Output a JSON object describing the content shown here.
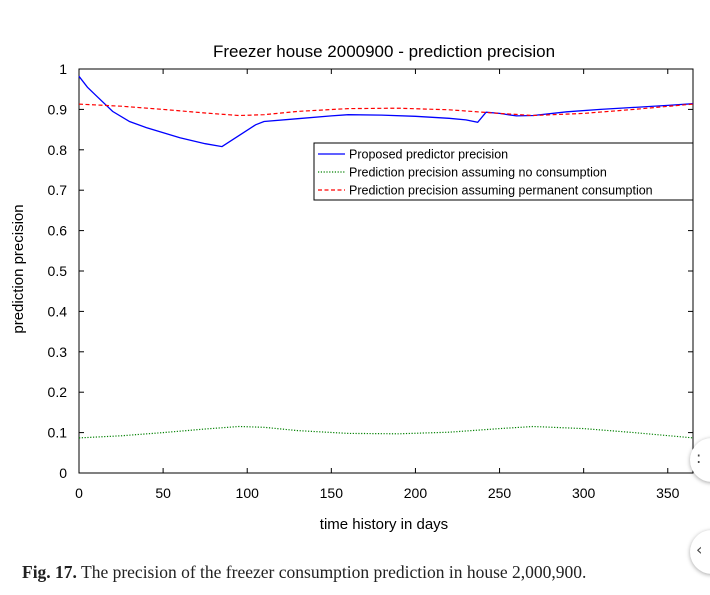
{
  "chart_data": {
    "type": "line",
    "title": "Freezer  house 2000900 - prediction precision",
    "xlabel": "time history in days",
    "ylabel": "prediction precision",
    "xlim": [
      0,
      365
    ],
    "ylim": [
      0,
      1
    ],
    "xticks": [
      0,
      50,
      100,
      150,
      200,
      250,
      300,
      350
    ],
    "yticks": [
      0,
      0.1,
      0.2,
      0.3,
      0.4,
      0.5,
      0.6,
      0.7,
      0.8,
      0.9,
      1
    ],
    "ytick_labels": [
      "0",
      "0.1",
      "0.2",
      "0.3",
      "0.4",
      "0.5",
      "0.6",
      "0.7",
      "0.8",
      "0.9",
      "1"
    ],
    "grid": false,
    "legend_position": "top-right",
    "series": [
      {
        "name": "Proposed predictor precision",
        "color": "#0000ff",
        "dash": "solid",
        "x": [
          0,
          5,
          10,
          20,
          30,
          40,
          60,
          75,
          85,
          95,
          105,
          110,
          130,
          150,
          160,
          180,
          200,
          220,
          230,
          237,
          242,
          250,
          260,
          270,
          290,
          310,
          330,
          350,
          365
        ],
        "y": [
          0.982,
          0.955,
          0.935,
          0.895,
          0.87,
          0.855,
          0.83,
          0.815,
          0.808,
          0.835,
          0.862,
          0.87,
          0.877,
          0.884,
          0.887,
          0.886,
          0.883,
          0.878,
          0.874,
          0.868,
          0.893,
          0.89,
          0.884,
          0.885,
          0.894,
          0.9,
          0.905,
          0.91,
          0.914
        ]
      },
      {
        "name": "Prediction precision assuming no consumption",
        "color": "#008000",
        "dash": "dotted",
        "x": [
          0,
          25,
          50,
          75,
          95,
          110,
          130,
          160,
          190,
          220,
          250,
          270,
          300,
          330,
          365
        ],
        "y": [
          0.087,
          0.092,
          0.1,
          0.109,
          0.115,
          0.113,
          0.105,
          0.098,
          0.097,
          0.101,
          0.11,
          0.115,
          0.11,
          0.1,
          0.087
        ]
      },
      {
        "name": "Prediction precision assuming permanent consumption",
        "color": "#ff0000",
        "dash": "dashed",
        "x": [
          0,
          25,
          50,
          75,
          95,
          110,
          130,
          160,
          190,
          220,
          250,
          270,
          300,
          330,
          365
        ],
        "y": [
          0.913,
          0.908,
          0.9,
          0.891,
          0.885,
          0.887,
          0.895,
          0.902,
          0.903,
          0.899,
          0.89,
          0.885,
          0.89,
          0.9,
          0.913
        ]
      }
    ]
  },
  "caption": {
    "label": "Fig. 17.",
    "text": "The precision of the freezer consumption prediction in house 2,000,900."
  },
  "side_controls": {
    "top_glyph": ":",
    "bottom_glyph": "‹"
  }
}
